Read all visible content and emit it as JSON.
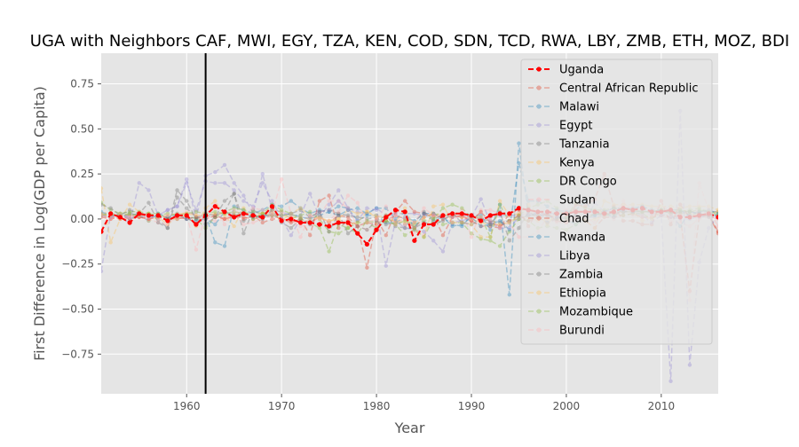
{
  "chart_data": {
    "type": "line",
    "title": "UGA with Neighbors CAF, MWI, EGY, TZA, KEN, COD, SDN, TCD, RWA, LBY, ZMB, ETH, MOZ, BDI",
    "xlabel": "Year",
    "ylabel": "First Difference in Log(GDP per Capita)",
    "xlim": [
      1951,
      2016
    ],
    "ylim": [
      -0.97,
      0.92
    ],
    "xticks": [
      1960,
      1970,
      1980,
      1990,
      2000,
      2010
    ],
    "yticks": [
      -0.75,
      -0.5,
      -0.25,
      0.0,
      0.25,
      0.5,
      0.75
    ],
    "ytick_labels": [
      "−0.75",
      "−0.50",
      "−0.25",
      "0.00",
      "0.25",
      "0.50",
      "0.75"
    ],
    "vline_x": 1962,
    "legend_position": "top-right",
    "grid": true,
    "x": [
      1951,
      1952,
      1953,
      1954,
      1955,
      1956,
      1957,
      1958,
      1959,
      1960,
      1961,
      1962,
      1963,
      1964,
      1965,
      1966,
      1967,
      1968,
      1969,
      1970,
      1971,
      1972,
      1973,
      1974,
      1975,
      1976,
      1977,
      1978,
      1979,
      1980,
      1981,
      1982,
      1983,
      1984,
      1985,
      1986,
      1987,
      1988,
      1989,
      1990,
      1991,
      1992,
      1993,
      1994,
      1995,
      1996,
      1997,
      1998,
      1999,
      2000,
      2001,
      2002,
      2003,
      2004,
      2005,
      2006,
      2007,
      2008,
      2009,
      2010,
      2011,
      2012,
      2013,
      2014,
      2015,
      2016
    ],
    "series": [
      {
        "name": "Uganda",
        "color": "#ff0000",
        "opacity": 1.0,
        "width": 2,
        "values": [
          -0.07,
          0.03,
          0.01,
          -0.02,
          0.03,
          0.02,
          0.02,
          -0.01,
          0.02,
          0.02,
          -0.03,
          0.02,
          0.07,
          0.04,
          0.01,
          0.03,
          0.02,
          0.01,
          0.07,
          -0.01,
          0.0,
          -0.02,
          -0.02,
          -0.03,
          -0.04,
          -0.02,
          -0.02,
          -0.08,
          -0.14,
          -0.06,
          0.01,
          0.05,
          0.04,
          -0.12,
          -0.03,
          -0.03,
          0.02,
          0.03,
          0.03,
          0.02,
          -0.01,
          0.02,
          0.03,
          0.03,
          0.06,
          0.05,
          0.04,
          0.04,
          0.03,
          0.03,
          0.04,
          0.04,
          0.04,
          0.03,
          0.04,
          0.06,
          0.05,
          0.06,
          0.04,
          0.04,
          0.05,
          0.01,
          0.01,
          0.02,
          0.03,
          0.01
        ]
      },
      {
        "name": "Central African Republic",
        "color": "#e24a33",
        "opacity": 0.4,
        "width": 1.5,
        "values": [
          0.02,
          0.01,
          0.0,
          0.02,
          0.01,
          0.0,
          0.02,
          0.01,
          0.0,
          0.01,
          -0.03,
          0.02,
          0.01,
          0.0,
          0.02,
          0.01,
          0.0,
          0.01,
          0.02,
          0.0,
          -0.01,
          0.0,
          -0.02,
          0.01,
          -0.02,
          0.02,
          0.01,
          -0.04,
          -0.02,
          -0.03,
          -0.01,
          0.02,
          0.0,
          -0.05,
          0.01,
          0.03,
          0.0,
          0.02,
          0.01,
          -0.01,
          -0.04,
          -0.04,
          -0.05,
          0.03,
          0.05,
          -0.04,
          0.04,
          0.02,
          0.01,
          0.0,
          0.01,
          -0.01,
          -0.05,
          0.01,
          0.01,
          0.02,
          0.03,
          0.01,
          0.01,
          0.02,
          0.01,
          0.02,
          -0.4,
          0.01,
          0.02,
          -0.08
        ]
      },
      {
        "name": "Malawi",
        "color": "#348abd",
        "opacity": 0.4,
        "width": 1.5,
        "values": [
          0.02,
          0.01,
          0.03,
          0.0,
          0.02,
          -0.01,
          0.03,
          0.01,
          0.02,
          0.0,
          0.01,
          0.02,
          -0.13,
          -0.15,
          0.07,
          0.05,
          0.03,
          0.05,
          0.08,
          0.07,
          0.1,
          0.06,
          0.03,
          0.05,
          0.04,
          0.07,
          0.06,
          -0.01,
          0.02,
          0.02,
          -0.02,
          -0.02,
          0.01,
          -0.01,
          0.03,
          -0.01,
          0.01,
          -0.03,
          -0.04,
          0.02,
          0.02,
          -0.06,
          0.08,
          -0.42,
          0.42,
          0.02,
          0.03,
          0.01,
          0.01,
          0.0,
          -0.03,
          0.01,
          0.02,
          0.03,
          0.01,
          0.06,
          0.06,
          0.07,
          0.05,
          0.05,
          0.03,
          -0.04,
          0.04,
          0.03,
          0.02,
          0.02
        ]
      },
      {
        "name": "Egypt",
        "color": "#988ed5",
        "opacity": 0.4,
        "width": 1.5,
        "values": [
          -0.29,
          0.03,
          0.01,
          -0.02,
          0.2,
          0.16,
          0.02,
          0.05,
          0.07,
          0.22,
          0.0,
          0.24,
          0.26,
          0.3,
          0.2,
          0.13,
          0.03,
          0.25,
          0.05,
          0.04,
          0.02,
          0.02,
          0.14,
          0.01,
          0.08,
          0.16,
          0.06,
          0.04,
          0.03,
          0.06,
          0.02,
          0.03,
          0.03,
          0.03,
          0.02,
          0.02,
          0.02,
          0.01,
          0.02,
          0.02,
          0.0,
          0.01,
          0.02,
          0.02,
          0.02,
          0.03,
          0.03,
          0.03,
          0.03,
          0.03,
          0.02,
          0.01,
          0.01,
          0.02,
          0.03,
          0.04,
          0.04,
          0.05,
          0.03,
          0.03,
          0.01,
          0.0,
          0.0,
          0.01,
          0.02,
          0.02
        ]
      },
      {
        "name": "Tanzania",
        "color": "#777777",
        "opacity": 0.4,
        "width": 1.5,
        "values": [
          0.03,
          0.02,
          0.01,
          0.03,
          0.02,
          0.01,
          0.0,
          -0.05,
          0.16,
          0.1,
          0.0,
          0.03,
          0.02,
          0.04,
          0.14,
          -0.08,
          0.05,
          0.02,
          0.03,
          0.02,
          0.03,
          0.05,
          0.01,
          0.04,
          0.05,
          0.03,
          0.02,
          0.01,
          0.0,
          0.01,
          -0.03,
          -0.02,
          -0.03,
          -0.02,
          0.04,
          0.0,
          0.02,
          0.02,
          0.02,
          0.01,
          0.0,
          -0.01,
          -0.02,
          -0.01,
          0.0,
          0.02,
          0.02,
          0.02,
          0.03,
          0.03,
          0.04,
          0.04,
          0.04,
          0.04,
          0.04,
          0.04,
          0.04,
          0.04,
          0.04,
          0.04,
          0.04,
          0.03,
          0.04,
          0.04,
          0.04,
          0.04
        ]
      },
      {
        "name": "Kenya",
        "color": "#fbc15e",
        "opacity": 0.4,
        "width": 1.5,
        "values": [
          0.17,
          -0.13,
          0.0,
          0.08,
          0.04,
          -0.01,
          0.01,
          -0.03,
          0.01,
          0.02,
          -0.04,
          0.06,
          0.1,
          0.02,
          -0.04,
          0.06,
          0.01,
          0.03,
          0.04,
          -0.01,
          0.03,
          0.06,
          0.02,
          0.0,
          -0.01,
          0.0,
          0.05,
          0.03,
          0.04,
          0.02,
          0.0,
          -0.01,
          -0.02,
          -0.02,
          0.01,
          0.03,
          0.02,
          0.03,
          0.01,
          0.0,
          -0.02,
          -0.03,
          -0.03,
          -0.02,
          0.01,
          0.01,
          -0.01,
          0.0,
          0.0,
          -0.01,
          0.01,
          -0.01,
          0.0,
          0.02,
          0.03,
          0.04,
          0.04,
          -0.01,
          0.01,
          0.05,
          0.03,
          0.03,
          0.03,
          0.02,
          0.03,
          0.04
        ]
      },
      {
        "name": "DR Congo",
        "color": "#8eba42",
        "opacity": 0.4,
        "width": 1.5,
        "values": [
          0.09,
          0.05,
          0.03,
          0.04,
          0.04,
          0.03,
          0.03,
          0.0,
          0.0,
          0.02,
          0.0,
          -0.05,
          0.01,
          0.04,
          0.06,
          0.05,
          0.0,
          0.03,
          0.05,
          0.04,
          0.0,
          0.02,
          0.04,
          0.0,
          -0.07,
          -0.08,
          -0.05,
          -0.08,
          -0.01,
          -0.02,
          -0.01,
          -0.03,
          -0.01,
          -0.03,
          -0.01,
          0.01,
          -0.03,
          -0.02,
          -0.02,
          -0.08,
          -0.11,
          -0.12,
          -0.15,
          -0.07,
          0.0,
          -0.01,
          -0.05,
          -0.04,
          -0.05,
          -0.06,
          -0.03,
          0.0,
          0.03,
          0.02,
          0.03,
          0.02,
          0.03,
          0.03,
          0.0,
          0.04,
          0.04,
          0.04,
          0.05,
          0.06,
          0.04,
          0.03
        ]
      },
      {
        "name": "Sudan",
        "color": "#ffb5b8",
        "opacity": 0.4,
        "width": 1.5,
        "values": [
          0.02,
          0.0,
          0.01,
          0.02,
          0.03,
          0.0,
          -0.02,
          -0.03,
          0.02,
          0.04,
          0.02,
          0.01,
          -0.01,
          0.0,
          0.03,
          -0.03,
          -0.02,
          0.0,
          0.05,
          0.04,
          0.0,
          -0.04,
          -0.03,
          0.02,
          0.1,
          0.1,
          0.06,
          -0.04,
          -0.06,
          -0.02,
          0.0,
          0.02,
          -0.03,
          -0.07,
          -0.09,
          0.02,
          0.02,
          -0.02,
          0.05,
          -0.1,
          0.05,
          0.05,
          0.03,
          0.02,
          0.02,
          0.03,
          0.04,
          0.04,
          0.04,
          0.05,
          0.04,
          0.04,
          0.04,
          0.04,
          0.05,
          0.08,
          0.06,
          0.04,
          0.02,
          0.03,
          -0.01,
          -0.02,
          -0.04,
          0.0,
          0.01,
          0.0
        ]
      },
      {
        "name": "Chad",
        "color": "#e24a33",
        "opacity": 0.4,
        "width": 1.5,
        "values": [
          0.01,
          0.0,
          0.01,
          0.0,
          0.01,
          0.0,
          0.01,
          0.0,
          0.01,
          0.0,
          0.01,
          0.0,
          0.02,
          0.0,
          0.01,
          0.0,
          0.02,
          -0.02,
          0.0,
          0.0,
          -0.02,
          0.0,
          -0.09,
          0.1,
          0.13,
          -0.05,
          -0.01,
          -0.04,
          -0.27,
          0.0,
          -0.09,
          0.04,
          0.1,
          0.04,
          0.03,
          0.02,
          -0.09,
          0.01,
          0.02,
          -0.01,
          0.04,
          -0.02,
          -0.04,
          -0.01,
          0.02,
          -0.01,
          0.01,
          0.03,
          -0.01,
          -0.02,
          0.08,
          0.07,
          0.11,
          0.25,
          0.07,
          -0.01,
          -0.01,
          -0.03,
          -0.03,
          0.1,
          -0.03,
          0.08,
          0.01,
          0.03,
          0.02,
          -0.07
        ]
      },
      {
        "name": "Rwanda",
        "color": "#348abd",
        "opacity": 0.4,
        "width": 1.5,
        "values": [
          0.04,
          0.02,
          0.02,
          0.02,
          0.03,
          0.02,
          0.01,
          0.01,
          0.03,
          0.0,
          -0.01,
          0.0,
          -0.03,
          0.04,
          0.02,
          0.03,
          0.01,
          0.02,
          0.02,
          0.02,
          0.03,
          0.01,
          0.0,
          0.02,
          0.04,
          0.02,
          0.05,
          0.06,
          0.03,
          0.06,
          0.06,
          0.0,
          0.04,
          -0.05,
          0.03,
          0.03,
          0.01,
          -0.04,
          -0.03,
          0.01,
          -0.04,
          -0.03,
          -0.01,
          -0.06,
          0.31,
          0.1,
          0.1,
          0.07,
          0.05,
          0.04,
          0.05,
          0.1,
          0.02,
          0.04,
          0.06,
          0.06,
          0.05,
          0.07,
          0.04,
          0.04,
          0.05,
          0.05,
          0.02,
          0.04,
          0.05,
          0.03
        ]
      },
      {
        "name": "Libya",
        "color": "#988ed5",
        "opacity": 0.4,
        "width": 1.5,
        "values": [
          0.02,
          0.01,
          0.02,
          0.01,
          0.02,
          0.01,
          0.02,
          0.05,
          0.07,
          0.2,
          0.05,
          0.21,
          0.2,
          0.2,
          0.16,
          0.1,
          0.07,
          0.2,
          0.1,
          0.0,
          -0.09,
          0.0,
          0.01,
          0.04,
          0.05,
          0.1,
          0.05,
          -0.01,
          0.06,
          0.05,
          -0.26,
          -0.01,
          -0.05,
          -0.06,
          -0.07,
          -0.12,
          -0.18,
          -0.02,
          -0.01,
          0.01,
          0.11,
          -0.02,
          -0.05,
          -0.05,
          0.01,
          0.02,
          0.04,
          -0.02,
          0.01,
          0.03,
          0.01,
          -0.01,
          0.09,
          0.04,
          0.06,
          0.05,
          0.04,
          0.02,
          -0.02,
          0.02,
          -0.9,
          0.6,
          -0.81,
          -0.24,
          -0.05,
          0.02
        ]
      },
      {
        "name": "Zambia",
        "color": "#777777",
        "opacity": 0.4,
        "width": 1.5,
        "values": [
          0.08,
          0.06,
          0.02,
          0.05,
          0.03,
          0.09,
          -0.02,
          -0.05,
          0.12,
          0.06,
          0.01,
          -0.03,
          0.01,
          0.1,
          0.14,
          -0.01,
          0.02,
          0.0,
          0.05,
          -0.02,
          -0.05,
          0.0,
          -0.03,
          0.04,
          -0.07,
          0.03,
          -0.08,
          -0.04,
          -0.06,
          -0.01,
          0.02,
          -0.04,
          -0.05,
          -0.05,
          -0.02,
          -0.03,
          -0.01,
          0.03,
          -0.02,
          -0.03,
          -0.01,
          -0.03,
          0.04,
          -0.12,
          -0.05,
          0.04,
          0.01,
          -0.02,
          0.0,
          0.01,
          0.02,
          0.01,
          0.03,
          0.03,
          0.03,
          0.04,
          0.04,
          0.04,
          0.04,
          0.05,
          0.03,
          0.04,
          0.04,
          0.03,
          0.01,
          0.01
        ]
      },
      {
        "name": "Ethiopia",
        "color": "#fbc15e",
        "opacity": 0.4,
        "width": 1.5,
        "values": [
          0.03,
          0.02,
          0.03,
          0.02,
          0.02,
          0.03,
          0.01,
          0.02,
          0.03,
          0.03,
          0.02,
          0.02,
          0.03,
          0.03,
          0.02,
          0.03,
          0.02,
          0.03,
          0.02,
          0.02,
          0.01,
          0.01,
          0.0,
          0.01,
          -0.01,
          0.0,
          -0.03,
          -0.02,
          0.04,
          0.01,
          0.02,
          -0.02,
          0.06,
          -0.05,
          -0.1,
          0.07,
          0.08,
          -0.02,
          -0.02,
          -0.03,
          -0.1,
          -0.1,
          0.1,
          0.02,
          0.03,
          0.08,
          0.03,
          -0.03,
          0.03,
          0.03,
          0.05,
          -0.01,
          -0.05,
          0.1,
          0.08,
          0.08,
          0.08,
          0.08,
          0.07,
          0.07,
          0.07,
          0.06,
          0.07,
          0.07,
          0.07,
          0.05
        ]
      },
      {
        "name": "Mozambique",
        "color": "#8eba42",
        "opacity": 0.4,
        "width": 1.5,
        "values": [
          0.02,
          0.03,
          0.02,
          0.03,
          0.02,
          0.03,
          0.02,
          0.03,
          0.02,
          0.03,
          0.04,
          0.03,
          0.04,
          0.03,
          0.04,
          0.03,
          0.04,
          0.03,
          0.08,
          0.05,
          0.03,
          0.0,
          -0.02,
          -0.05,
          -0.18,
          -0.03,
          -0.05,
          -0.02,
          -0.02,
          -0.05,
          -0.01,
          -0.03,
          -0.09,
          -0.06,
          -0.1,
          0.0,
          0.06,
          0.08,
          0.06,
          0.01,
          0.01,
          -0.1,
          0.08,
          -0.02,
          0.02,
          0.06,
          0.08,
          0.1,
          0.06,
          0.01,
          0.09,
          0.06,
          0.05,
          0.05,
          0.06,
          0.06,
          0.05,
          0.04,
          0.04,
          0.05,
          0.05,
          0.05,
          0.04,
          0.05,
          0.04,
          0.02
        ]
      },
      {
        "name": "Burundi",
        "color": "#ffb5b8",
        "opacity": 0.4,
        "width": 1.5,
        "values": [
          0.02,
          0.01,
          0.02,
          0.01,
          0.02,
          0.01,
          0.0,
          0.02,
          0.0,
          0.02,
          -0.17,
          0.03,
          0.08,
          -0.03,
          0.05,
          0.02,
          0.06,
          0.05,
          0.03,
          0.22,
          0.03,
          -0.1,
          0.02,
          0.0,
          -0.01,
          0.04,
          0.13,
          0.09,
          -0.02,
          0.0,
          0.07,
          -0.03,
          0.01,
          -0.02,
          0.06,
          0.02,
          0.01,
          0.02,
          0.02,
          0.0,
          0.01,
          0.0,
          -0.05,
          -0.02,
          -0.1,
          -0.1,
          -0.07,
          0.01,
          -0.02,
          -0.02,
          0.0,
          0.01,
          -0.02,
          0.02,
          0.0,
          0.1,
          0.02,
          0.02,
          0.0,
          0.1,
          0.02,
          0.02,
          -0.45,
          0.2,
          0.05,
          -0.04
        ]
      }
    ]
  }
}
